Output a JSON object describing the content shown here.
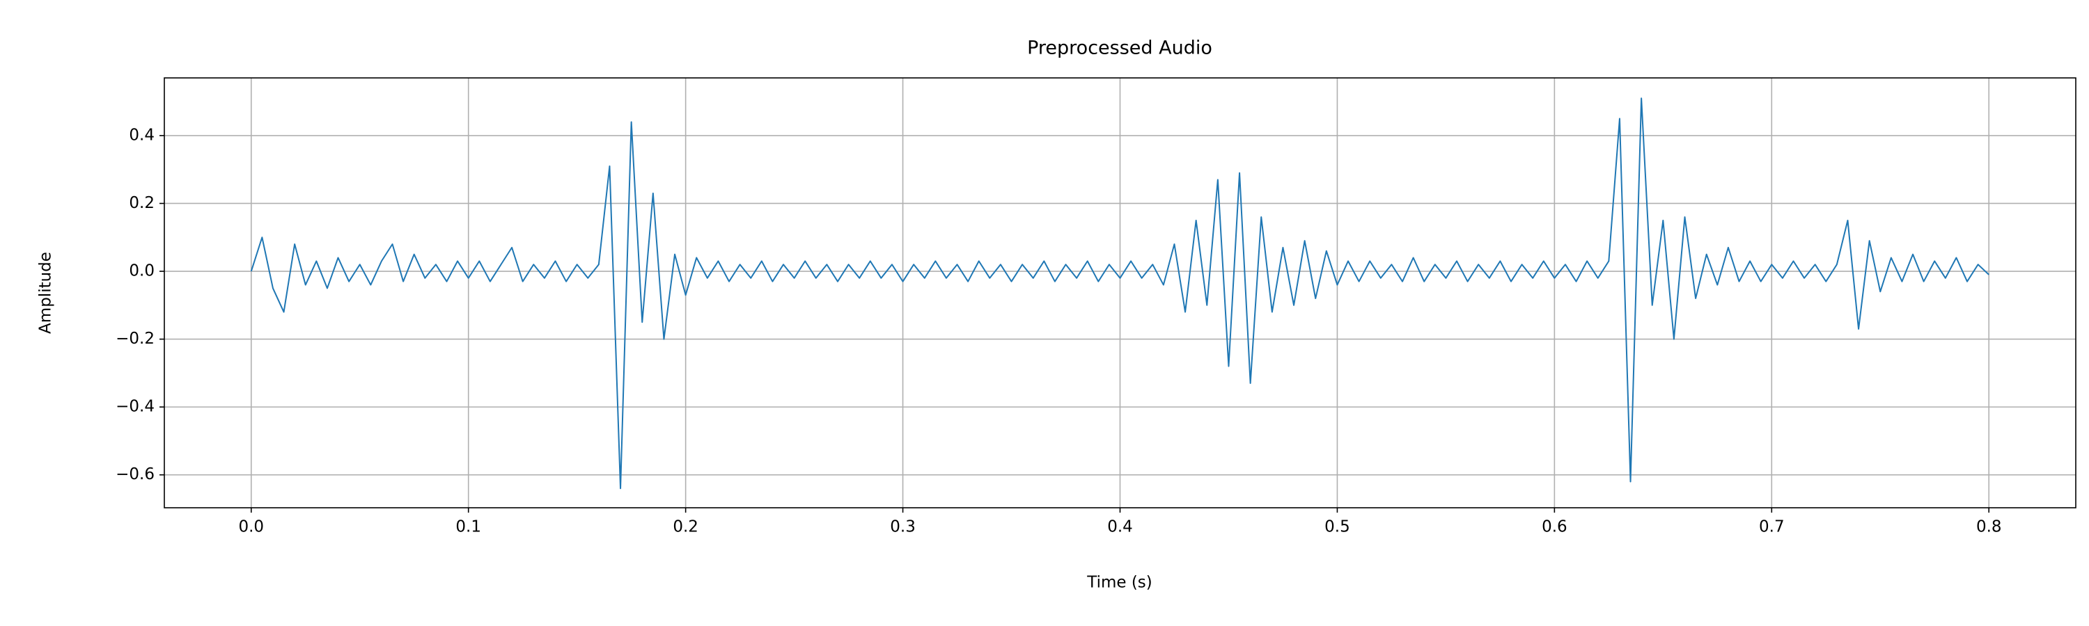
{
  "chart_data": {
    "type": "line",
    "title": "Preprocessed Audio",
    "x_label": "Time (s)",
    "y_label": "Amplitude",
    "x": [
      0,
      0.005,
      0.01,
      0.015,
      0.02,
      0.025,
      0.03,
      0.035,
      0.04,
      0.045,
      0.05,
      0.055,
      0.06,
      0.065,
      0.07,
      0.075,
      0.08,
      0.085,
      0.09,
      0.095,
      0.1,
      0.105,
      0.11,
      0.115,
      0.12,
      0.125,
      0.13,
      0.135,
      0.14,
      0.145,
      0.15,
      0.155,
      0.16,
      0.165,
      0.17,
      0.175,
      0.18,
      0.185,
      0.19,
      0.195,
      0.2,
      0.205,
      0.21,
      0.215,
      0.22,
      0.225,
      0.23,
      0.235,
      0.24,
      0.245,
      0.25,
      0.255,
      0.26,
      0.265,
      0.27,
      0.275,
      0.28,
      0.285,
      0.29,
      0.295,
      0.3,
      0.305,
      0.31,
      0.315,
      0.32,
      0.325,
      0.33,
      0.335,
      0.34,
      0.345,
      0.35,
      0.355,
      0.36,
      0.365,
      0.37,
      0.375,
      0.38,
      0.385,
      0.39,
      0.395,
      0.4,
      0.405,
      0.41,
      0.415,
      0.42,
      0.425,
      0.43,
      0.435,
      0.44,
      0.445,
      0.45,
      0.455,
      0.46,
      0.465,
      0.47,
      0.475,
      0.48,
      0.485,
      0.49,
      0.495,
      0.5,
      0.505,
      0.51,
      0.515,
      0.52,
      0.525,
      0.53,
      0.535,
      0.54,
      0.545,
      0.55,
      0.555,
      0.56,
      0.565,
      0.57,
      0.575,
      0.58,
      0.585,
      0.59,
      0.595,
      0.6,
      0.605,
      0.61,
      0.615,
      0.62,
      0.625,
      0.63,
      0.635,
      0.64,
      0.645,
      0.65,
      0.655,
      0.66,
      0.665,
      0.67,
      0.675,
      0.68,
      0.685,
      0.69,
      0.695,
      0.7,
      0.705,
      0.71,
      0.715,
      0.72,
      0.725,
      0.73,
      0.735,
      0.74,
      0.745,
      0.75,
      0.755,
      0.76,
      0.765,
      0.77,
      0.775,
      0.78,
      0.785,
      0.79,
      0.795,
      0.8
    ],
    "series": [
      {
        "color": "#1f77b4",
        "values": [
          0,
          0.1,
          -0.05,
          -0.12,
          0.08,
          -0.04,
          0.03,
          -0.05,
          0.04,
          -0.03,
          0.02,
          -0.04,
          0.03,
          0.08,
          -0.03,
          0.05,
          -0.02,
          0.02,
          -0.03,
          0.03,
          -0.02,
          0.03,
          -0.03,
          0.02,
          0.07,
          -0.03,
          0.02,
          -0.02,
          0.03,
          -0.03,
          0.02,
          -0.02,
          0.02,
          0.31,
          -0.64,
          0.44,
          -0.15,
          0.23,
          -0.2,
          0.05,
          -0.07,
          0.04,
          -0.02,
          0.03,
          -0.03,
          0.02,
          -0.02,
          0.03,
          -0.03,
          0.02,
          -0.02,
          0.03,
          -0.02,
          0.02,
          -0.03,
          0.02,
          -0.02,
          0.03,
          -0.02,
          0.02,
          -0.03,
          0.02,
          -0.02,
          0.03,
          -0.02,
          0.02,
          -0.03,
          0.03,
          -0.02,
          0.02,
          -0.03,
          0.02,
          -0.02,
          0.03,
          -0.03,
          0.02,
          -0.02,
          0.03,
          -0.03,
          0.02,
          -0.02,
          0.03,
          -0.02,
          0.02,
          -0.04,
          0.08,
          -0.12,
          0.15,
          -0.1,
          0.27,
          -0.28,
          0.29,
          -0.33,
          0.16,
          -0.12,
          0.07,
          -0.1,
          0.09,
          -0.08,
          0.06,
          -0.04,
          0.03,
          -0.03,
          0.03,
          -0.02,
          0.02,
          -0.03,
          0.04,
          -0.03,
          0.02,
          -0.02,
          0.03,
          -0.03,
          0.02,
          -0.02,
          0.03,
          -0.03,
          0.02,
          -0.02,
          0.03,
          -0.02,
          0.02,
          -0.03,
          0.03,
          -0.02,
          0.03,
          0.45,
          -0.62,
          0.51,
          -0.1,
          0.15,
          -0.2,
          0.16,
          -0.08,
          0.05,
          -0.04,
          0.07,
          -0.03,
          0.03,
          -0.03,
          0.02,
          -0.02,
          0.03,
          -0.02,
          0.02,
          -0.03,
          0.02,
          0.15,
          -0.17,
          0.09,
          -0.06,
          0.04,
          -0.03,
          0.05,
          -0.03,
          0.03,
          -0.02,
          0.04,
          -0.03,
          0.02,
          -0.01
        ]
      }
    ],
    "xlim": [
      -0.04,
      0.84
    ],
    "ylim": [
      -0.697,
      0.57
    ],
    "xticks": [
      {
        "value": 0,
        "label": "0.0"
      },
      0.1,
      0.2,
      0.3,
      0.4,
      0.5,
      0.6,
      0.7,
      0.8
    ],
    "yticks": [
      {
        "value": -0.6,
        "label": "−0.6"
      },
      {
        "value": -0.4,
        "label": "−0.4"
      },
      {
        "value": -0.2,
        "label": "−0.2"
      },
      {
        "value": 0,
        "label": "0.0"
      },
      0.2,
      0.4
    ],
    "grid": true
  }
}
